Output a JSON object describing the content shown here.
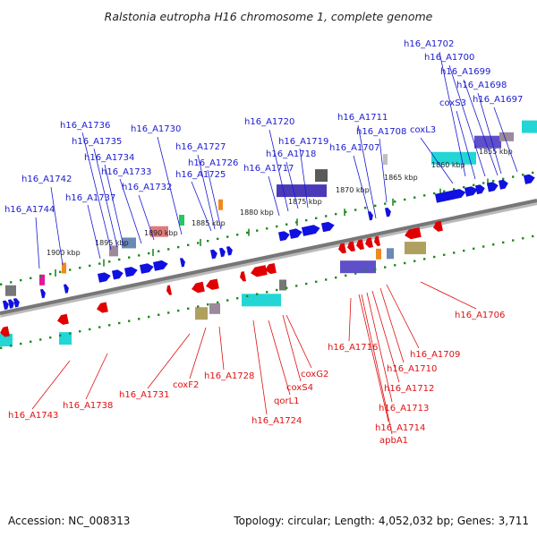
{
  "title": "Ralstonia eutropha H16 chromosome 1, complete genome",
  "footer": {
    "accession": "Accession: NC_008313",
    "topology": "Topology: circular; Length: 4,052,032 bp; Genes: 3,711"
  },
  "colors": {
    "forward_gene": "#1010e0",
    "reverse_gene": "#e00000",
    "backbone": "#777777",
    "tick": "#1e8a1e",
    "label_top": "#1a1ad0",
    "label_bottom": "#e01010"
  },
  "ticks": [
    "1900 kbp",
    "1895 kbp",
    "1890 kbp",
    "1885 kbp",
    "1880 kbp",
    "1875 kbp",
    "1870 kbp",
    "1865 kbp",
    "1860 kbp",
    "1855 kbp"
  ],
  "forward_labels": [
    "h16_A1744",
    "h16_A1742",
    "h16_A1737",
    "h16_A1736",
    "h16_A1735",
    "h16_A1734",
    "h16_A1733",
    "h16_A1732",
    "h16_A1730",
    "h16_A1727",
    "h16_A1726",
    "h16_A1725",
    "h16_A1720",
    "h16_A1719",
    "h16_A1718",
    "h16_A1717",
    "h16_A1711",
    "h16_A1708",
    "h16_A1707",
    "coxL3",
    "coxS3",
    "h16_A1702",
    "h16_A1700",
    "h16_A1699",
    "h16_A1698",
    "h16_A1697"
  ],
  "reverse_labels": [
    "h16_A1743",
    "h16_A1738",
    "h16_A1731",
    "coxF2",
    "h16_A1728",
    "h16_A1724",
    "qorL1",
    "coxS4",
    "coxG2",
    "h16_A1716",
    "h16_A1714",
    "apbA1",
    "h16_A1713",
    "h16_A1712",
    "h16_A1710",
    "h16_A1709",
    "h16_A1706"
  ]
}
